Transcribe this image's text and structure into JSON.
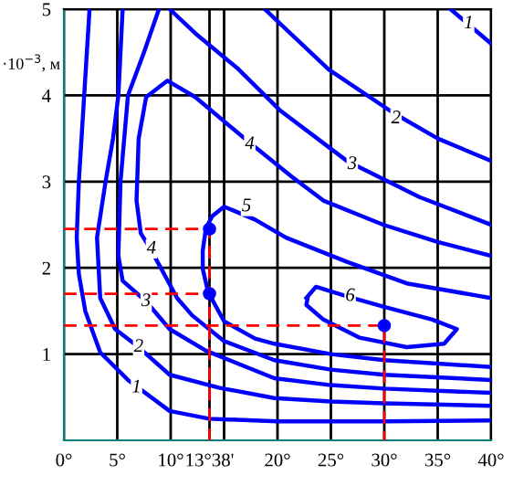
{
  "chart_data": {
    "type": "line",
    "ylabel": "·10$^{−3}$, м",
    "xlim": [
      0,
      40
    ],
    "ylim": [
      0,
      5
    ],
    "xticks": [
      {
        "value": 0,
        "label": "0°"
      },
      {
        "value": 5,
        "label": "5°"
      },
      {
        "value": 10,
        "label": "10°"
      },
      {
        "value": 13.633,
        "label": "13°38'"
      },
      {
        "value": 15,
        "label": null
      },
      {
        "value": 20,
        "label": "20°"
      },
      {
        "value": 25,
        "label": "25°"
      },
      {
        "value": 30,
        "label": "30°"
      },
      {
        "value": 35,
        "label": "35°"
      },
      {
        "value": 40,
        "label": "40°"
      }
    ],
    "yticks": [
      1,
      2,
      3,
      4,
      5
    ],
    "grid": true,
    "marker": "none",
    "line_style": "solid",
    "series": [
      {
        "color": "#0000ff",
        "x": [
          2.4,
          1.9,
          1.4,
          1.2,
          1.4,
          2.0,
          3.4,
          6.0,
          9.9,
          13.6,
          20,
          30,
          40,
          null,
          36.2,
          40
        ],
        "values": [
          5,
          4,
          3,
          2.35,
          1.93,
          1.5,
          1.02,
          0.7,
          0.34,
          0.25,
          0.22,
          0.22,
          0.23,
          null,
          5,
          4.6
        ]
      },
      {
        "color": "#0000ff",
        "x": [
          5.5,
          5.1,
          4.6,
          3.9,
          3.1,
          3.4,
          4.8,
          7.0,
          9.9,
          14.5,
          19.7,
          25,
          30,
          40,
          null,
          18.8,
          24.8,
          30.8,
          35,
          40
        ],
        "values": [
          5,
          4,
          3.5,
          3,
          2.35,
          1.65,
          1.29,
          1.08,
          0.76,
          0.61,
          0.49,
          0.45,
          0.43,
          0.4,
          null,
          5,
          4.3,
          3.8,
          3.5,
          3.24
        ]
      },
      {
        "color": "#0000ff",
        "x": [
          8.9,
          7.5,
          6.0,
          5.3,
          5.1,
          5.5,
          7.7,
          9.9,
          13.3,
          19.7,
          25,
          30,
          40,
          null,
          9.9,
          12.3,
          16.2,
          20.2,
          26.5,
          33.3,
          40
        ],
        "values": [
          5,
          4.5,
          4,
          3,
          2.14,
          1.85,
          1.61,
          1.29,
          1.04,
          0.72,
          0.64,
          0.6,
          0.55,
          null,
          5,
          4.72,
          4.32,
          3.83,
          3.24,
          2.82,
          2.5
        ]
      },
      {
        "color": "#0000ff",
        "x": [
          40,
          35,
          29.9,
          24.3,
          21.4,
          17.4,
          12.3,
          9.7,
          7.7,
          7.0,
          6.8,
          7.2,
          8.2,
          10.6,
          12,
          15,
          19.7,
          25,
          30,
          40
        ],
        "values": [
          2.14,
          2.3,
          2.5,
          2.78,
          3.05,
          3.45,
          3.98,
          4.17,
          3.98,
          3.5,
          2.78,
          2.4,
          2.2,
          1.65,
          1.45,
          1.15,
          0.93,
          0.82,
          0.76,
          0.7
        ]
      },
      {
        "color": "#0000ff",
        "x": [
          40,
          32.1,
          26.5,
          20.8,
          17.9,
          15,
          13.9,
          13.3,
          13.0,
          13.0,
          13.5,
          15,
          17.9,
          19.7,
          25,
          30,
          40
        ],
        "values": [
          1.65,
          1.82,
          2.07,
          2.35,
          2.56,
          2.71,
          2.6,
          2.46,
          2.2,
          1.99,
          1.72,
          1.38,
          1.18,
          1.12,
          1.0,
          0.93,
          0.85
        ]
      },
      {
        "color": "#0000ff",
        "x": [
          22.7,
          23.6,
          26.5,
          29.9,
          34.5,
          36.8,
          35.6,
          32.1,
          27.7,
          24.3,
          22.7,
          22.8
        ],
        "values": [
          1.65,
          1.78,
          1.67,
          1.55,
          1.4,
          1.29,
          1.12,
          1.08,
          1.19,
          1.4,
          1.57,
          1.64
        ]
      },
      {
        "color": "#ff0000",
        "line_style": "dashed",
        "x": [
          0,
          13.633,
          13.633
        ],
        "values": [
          2.45,
          2.45,
          0
        ]
      },
      {
        "color": "#ff0000",
        "line_style": "dashed",
        "x": [
          0,
          13.633
        ],
        "values": [
          1.7,
          1.7
        ]
      },
      {
        "color": "#ff0000",
        "line_style": "dashed",
        "x": [
          0,
          30,
          30
        ],
        "values": [
          1.33,
          1.33,
          0
        ]
      },
      {
        "color": "#0000ff",
        "type": "scatter",
        "marker": "circle",
        "x": [
          13.633,
          13.633,
          30
        ],
        "values": [
          2.45,
          1.7,
          1.33
        ]
      }
    ],
    "annotations": [
      {
        "text": "1",
        "x": 37.9,
        "y": 4.83
      },
      {
        "text": "1",
        "x": 6.8,
        "y": 0.61
      },
      {
        "text": "2",
        "x": 31.1,
        "y": 3.73
      },
      {
        "text": "2",
        "x": 7.0,
        "y": 1.08
      },
      {
        "text": "3",
        "x": 27.0,
        "y": 3.2
      },
      {
        "text": "3",
        "x": 7.7,
        "y": 1.61
      },
      {
        "text": "4",
        "x": 17.4,
        "y": 3.43
      },
      {
        "text": "4",
        "x": 8.2,
        "y": 2.22
      },
      {
        "text": "5",
        "x": 17.1,
        "y": 2.71
      },
      {
        "text": "6",
        "x": 26.8,
        "y": 1.67
      }
    ]
  }
}
